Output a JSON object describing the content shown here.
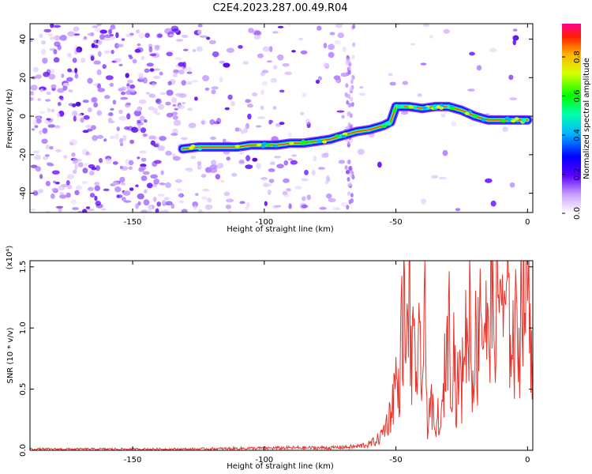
{
  "title": "C2E4.2023.287.00.49.R04",
  "spectrogram": {
    "type": "heatmap",
    "xlabel": "Height of straight line (km)",
    "ylabel": "Frequency (Hz)",
    "xlim": [
      -189,
      2
    ],
    "ylim": [
      -50,
      48
    ],
    "x_ticks": [
      -150,
      -100,
      -50,
      0
    ],
    "y_ticks": [
      -40,
      -20,
      0,
      20,
      40
    ],
    "ridge_x": [
      -131,
      -125,
      -120,
      -115,
      -110,
      -105,
      -100,
      -95,
      -90,
      -85,
      -80,
      -75,
      -70,
      -65,
      -60,
      -55,
      -52,
      -50,
      -45,
      -40,
      -35,
      -30,
      -25,
      -20,
      -15,
      -10,
      -5,
      0
    ],
    "ridge_y": [
      -17,
      -16,
      -16,
      -16,
      -16,
      -15,
      -15,
      -15,
      -14,
      -14,
      -13,
      -12,
      -10,
      -8,
      -7,
      -5,
      -3,
      5,
      5,
      4,
      5,
      5,
      3,
      0,
      -2,
      -2,
      -2,
      -2
    ],
    "colorbar_label": "Normalized spectral amplitude",
    "colorbar_ticks": [
      "0.0",
      "0.2",
      "0.4",
      "0.6",
      "0.8"
    ],
    "colorbar_range": [
      0,
      0.97
    ]
  },
  "chart_data": {
    "type": "line",
    "xlabel": "Height of straight line (km)",
    "ylabel": "SNR (10 * v/v)",
    "exponent_label": "(x10⁴)",
    "xlim": [
      -189,
      2
    ],
    "ylim": [
      0,
      1.55
    ],
    "x_ticks": [
      -150,
      -100,
      -50,
      0
    ],
    "y_ticks": [
      "0.0",
      "0.5",
      "1.0",
      "1.5"
    ],
    "series": [
      {
        "color": "#e8332b",
        "x": [
          -189,
          -160,
          -130,
          -110,
          -90,
          -75,
          -65,
          -60,
          -56,
          -54,
          -52,
          -50,
          -49,
          -48,
          -47,
          -46,
          -45,
          -44,
          -43,
          -42,
          -41,
          -40,
          -39,
          -38,
          -37,
          -36,
          -35,
          -34,
          -33,
          -32,
          -31,
          -30,
          -29,
          -28,
          -27,
          -26,
          -25,
          -24,
          -23,
          -22,
          -21,
          -20,
          -19,
          -18,
          -17,
          -16,
          -15,
          -14,
          -13,
          -12,
          -11,
          -10,
          -9,
          -8,
          -7,
          -6,
          -5,
          -4,
          -3,
          -2,
          -1,
          0,
          1,
          2
        ],
        "y": [
          0.01,
          0.01,
          0.01,
          0.015,
          0.02,
          0.02,
          0.03,
          0.05,
          0.1,
          0.2,
          0.3,
          0.6,
          0.45,
          0.9,
          1.15,
          0.7,
          1.48,
          0.5,
          1.25,
          0.3,
          0.95,
          0.55,
          1.0,
          0.2,
          0.4,
          0.3,
          0.1,
          0.3,
          0.15,
          0.45,
          0.8,
          1.15,
          0.6,
          0.9,
          0.35,
          0.7,
          0.45,
          1.1,
          0.8,
          1.3,
          0.5,
          0.95,
          0.7,
          1.5,
          0.9,
          1.1,
          0.8,
          1.35,
          0.95,
          1.2,
          1.15,
          1.55,
          0.85,
          1.3,
          0.95,
          1.1,
          0.75,
          1.2,
          0.9,
          1.55,
          1.3,
          1.55,
          1.1,
          0.75
        ]
      }
    ]
  }
}
